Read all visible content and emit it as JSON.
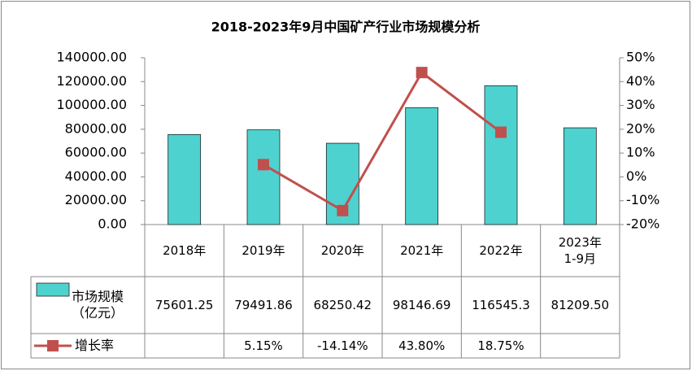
{
  "chart_data": {
    "type": "bar",
    "title": "2018-2023年9月中国矿产行业市场规模分析",
    "categories": [
      "2018年",
      "2019年",
      "2020年",
      "2021年",
      "2022年",
      "2023年\n1-9月"
    ],
    "series": [
      {
        "name": "市场规模\n（亿元）",
        "type": "bar",
        "color": "#4dd2d0",
        "values": [
          75601.25,
          79491.86,
          68250.42,
          98146.69,
          116545.3,
          81209.5
        ],
        "value_labels": [
          "75601.25",
          "79491.86",
          "68250.42",
          "98146.69",
          "116545.3",
          "81209.50"
        ]
      },
      {
        "name": "增长率",
        "type": "line",
        "axis": "y2",
        "color": "#c0504d",
        "values": [
          null,
          5.15,
          -14.14,
          43.8,
          18.75,
          null
        ],
        "value_labels": [
          null,
          "5.15%",
          "-14.14%",
          "43.80%",
          "18.75%",
          null
        ]
      }
    ],
    "ylim": [
      0,
      140000
    ],
    "yticks": [
      {
        "value": 0,
        "label": "0.00"
      },
      {
        "value": 20000,
        "label": "20000.00"
      },
      {
        "value": 40000,
        "label": "40000.00"
      },
      {
        "value": 60000,
        "label": "60000.00"
      },
      {
        "value": 80000,
        "label": "80000.00"
      },
      {
        "value": 100000,
        "label": "100000.00"
      },
      {
        "value": 120000,
        "label": "120000.00"
      },
      {
        "value": 140000,
        "label": "140000.00"
      }
    ],
    "y2lim": [
      -20,
      50
    ],
    "y2ticks": [
      {
        "value": -20,
        "label": "-20%"
      },
      {
        "value": -10,
        "label": "-10%"
      },
      {
        "value": 0,
        "label": "0%"
      },
      {
        "value": 10,
        "label": "10%"
      },
      {
        "value": 20,
        "label": "20%"
      },
      {
        "value": 30,
        "label": "30%"
      },
      {
        "value": 40,
        "label": "40%"
      },
      {
        "value": 50,
        "label": "50%"
      }
    ],
    "grid": false
  }
}
